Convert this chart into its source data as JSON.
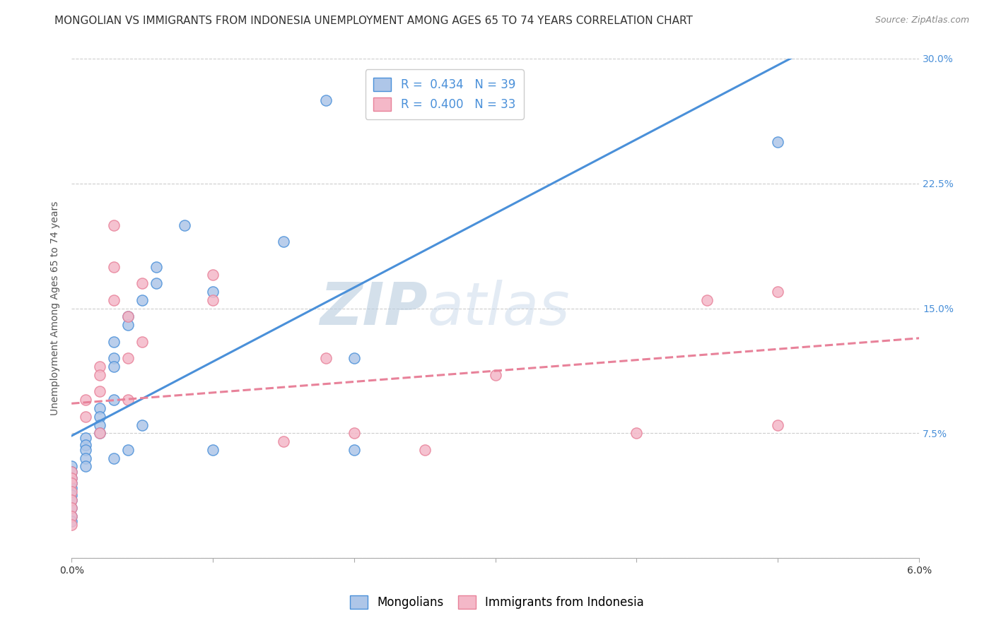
{
  "title": "MONGOLIAN VS IMMIGRANTS FROM INDONESIA UNEMPLOYMENT AMONG AGES 65 TO 74 YEARS CORRELATION CHART",
  "source": "Source: ZipAtlas.com",
  "ylabel": "Unemployment Among Ages 65 to 74 years",
  "xlim": [
    0.0,
    0.06
  ],
  "ylim": [
    0.0,
    0.3
  ],
  "xticks": [
    0.0,
    0.01,
    0.02,
    0.03,
    0.04,
    0.05,
    0.06
  ],
  "xtick_labels": [
    "0.0%",
    "",
    "",
    "",
    "",
    "",
    "6.0%"
  ],
  "yticks": [
    0.0,
    0.075,
    0.15,
    0.225,
    0.3
  ],
  "ytick_labels_right": [
    "",
    "7.5%",
    "15.0%",
    "22.5%",
    "30.0%"
  ],
  "mongolians_color": "#aec6e8",
  "indonesia_color": "#f4b8c8",
  "mongolians_line_color": "#4a90d9",
  "indonesia_line_color": "#e8829a",
  "legend_R1": "0.434",
  "legend_N1": "39",
  "legend_R2": "0.400",
  "legend_N2": "33",
  "legend_label1": "Mongolians",
  "legend_label2": "Immigrants from Indonesia",
  "watermark_zip": "ZIP",
  "watermark_atlas": "atlas",
  "mongolians_x": [
    0.0,
    0.0,
    0.0,
    0.0,
    0.0,
    0.0,
    0.0,
    0.0,
    0.0,
    0.0,
    0.001,
    0.001,
    0.001,
    0.001,
    0.001,
    0.002,
    0.002,
    0.002,
    0.002,
    0.003,
    0.003,
    0.003,
    0.003,
    0.003,
    0.004,
    0.004,
    0.004,
    0.005,
    0.005,
    0.006,
    0.006,
    0.008,
    0.01,
    0.01,
    0.015,
    0.018,
    0.02,
    0.02,
    0.05
  ],
  "mongolians_y": [
    0.055,
    0.052,
    0.048,
    0.045,
    0.042,
    0.038,
    0.035,
    0.03,
    0.025,
    0.022,
    0.072,
    0.068,
    0.065,
    0.06,
    0.055,
    0.09,
    0.085,
    0.08,
    0.075,
    0.13,
    0.12,
    0.115,
    0.095,
    0.06,
    0.145,
    0.14,
    0.065,
    0.155,
    0.08,
    0.175,
    0.165,
    0.2,
    0.16,
    0.065,
    0.19,
    0.275,
    0.12,
    0.065,
    0.25
  ],
  "indonesia_x": [
    0.0,
    0.0,
    0.0,
    0.0,
    0.0,
    0.0,
    0.0,
    0.0,
    0.001,
    0.001,
    0.002,
    0.002,
    0.002,
    0.002,
    0.003,
    0.003,
    0.003,
    0.004,
    0.004,
    0.004,
    0.005,
    0.005,
    0.01,
    0.01,
    0.015,
    0.018,
    0.02,
    0.025,
    0.03,
    0.04,
    0.045,
    0.05,
    0.05
  ],
  "indonesia_y": [
    0.052,
    0.048,
    0.045,
    0.04,
    0.035,
    0.03,
    0.025,
    0.02,
    0.095,
    0.085,
    0.115,
    0.11,
    0.1,
    0.075,
    0.2,
    0.175,
    0.155,
    0.145,
    0.12,
    0.095,
    0.165,
    0.13,
    0.17,
    0.155,
    0.07,
    0.12,
    0.075,
    0.065,
    0.11,
    0.075,
    0.155,
    0.16,
    0.08
  ],
  "background_color": "#ffffff",
  "grid_color": "#cccccc",
  "title_fontsize": 11,
  "axis_label_fontsize": 10,
  "tick_fontsize": 10,
  "legend_fontsize": 12
}
